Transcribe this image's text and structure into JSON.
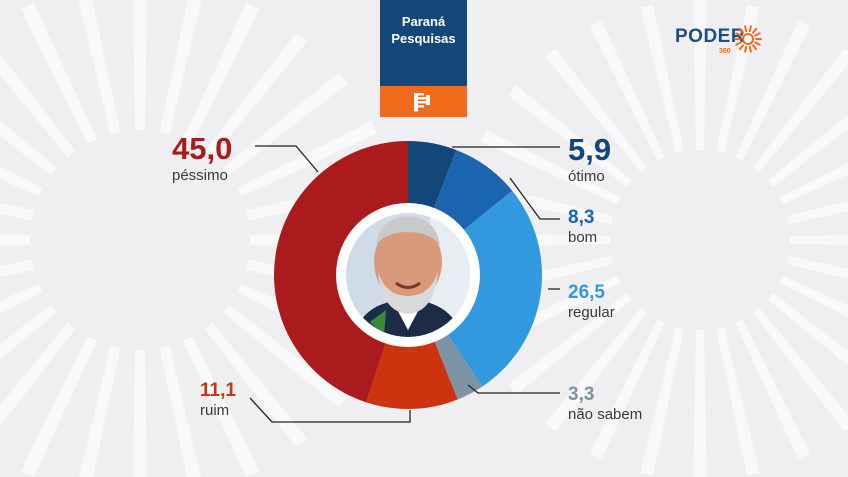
{
  "source": {
    "name_lines": [
      "Paraná",
      "Pesquisas"
    ]
  },
  "publisher": {
    "wordmark": "PODER",
    "number": "360"
  },
  "colors": {
    "background": "#efeff1",
    "source_box": "#13477a",
    "accent_orange": "#f26a1c",
    "otimo": "#13477a",
    "bom": "#1a64b0",
    "regular": "#3399de",
    "nao_sabem": "#7f93a6",
    "ruim": "#cc3410",
    "pessimo": "#ab1a1d"
  },
  "center_image": "portrait-photo",
  "chart_data": {
    "type": "pie",
    "donut": true,
    "title": "",
    "unit": "%",
    "slices": [
      {
        "label": "ótimo",
        "value": 5.9,
        "display": "5,9",
        "color": "#13477a"
      },
      {
        "label": "bom",
        "value": 8.3,
        "display": "8,3",
        "color": "#1a64b0"
      },
      {
        "label": "regular",
        "value": 26.5,
        "display": "26,5",
        "color": "#3399de"
      },
      {
        "label": "não sabem",
        "value": 3.3,
        "display": "3,3",
        "color": "#7f93a6"
      },
      {
        "label": "ruim",
        "value": 11.1,
        "display": "11,1",
        "color": "#cc3410"
      },
      {
        "label": "péssimo",
        "value": 45.0,
        "display": "45,0",
        "color": "#ab1a1d"
      }
    ]
  }
}
